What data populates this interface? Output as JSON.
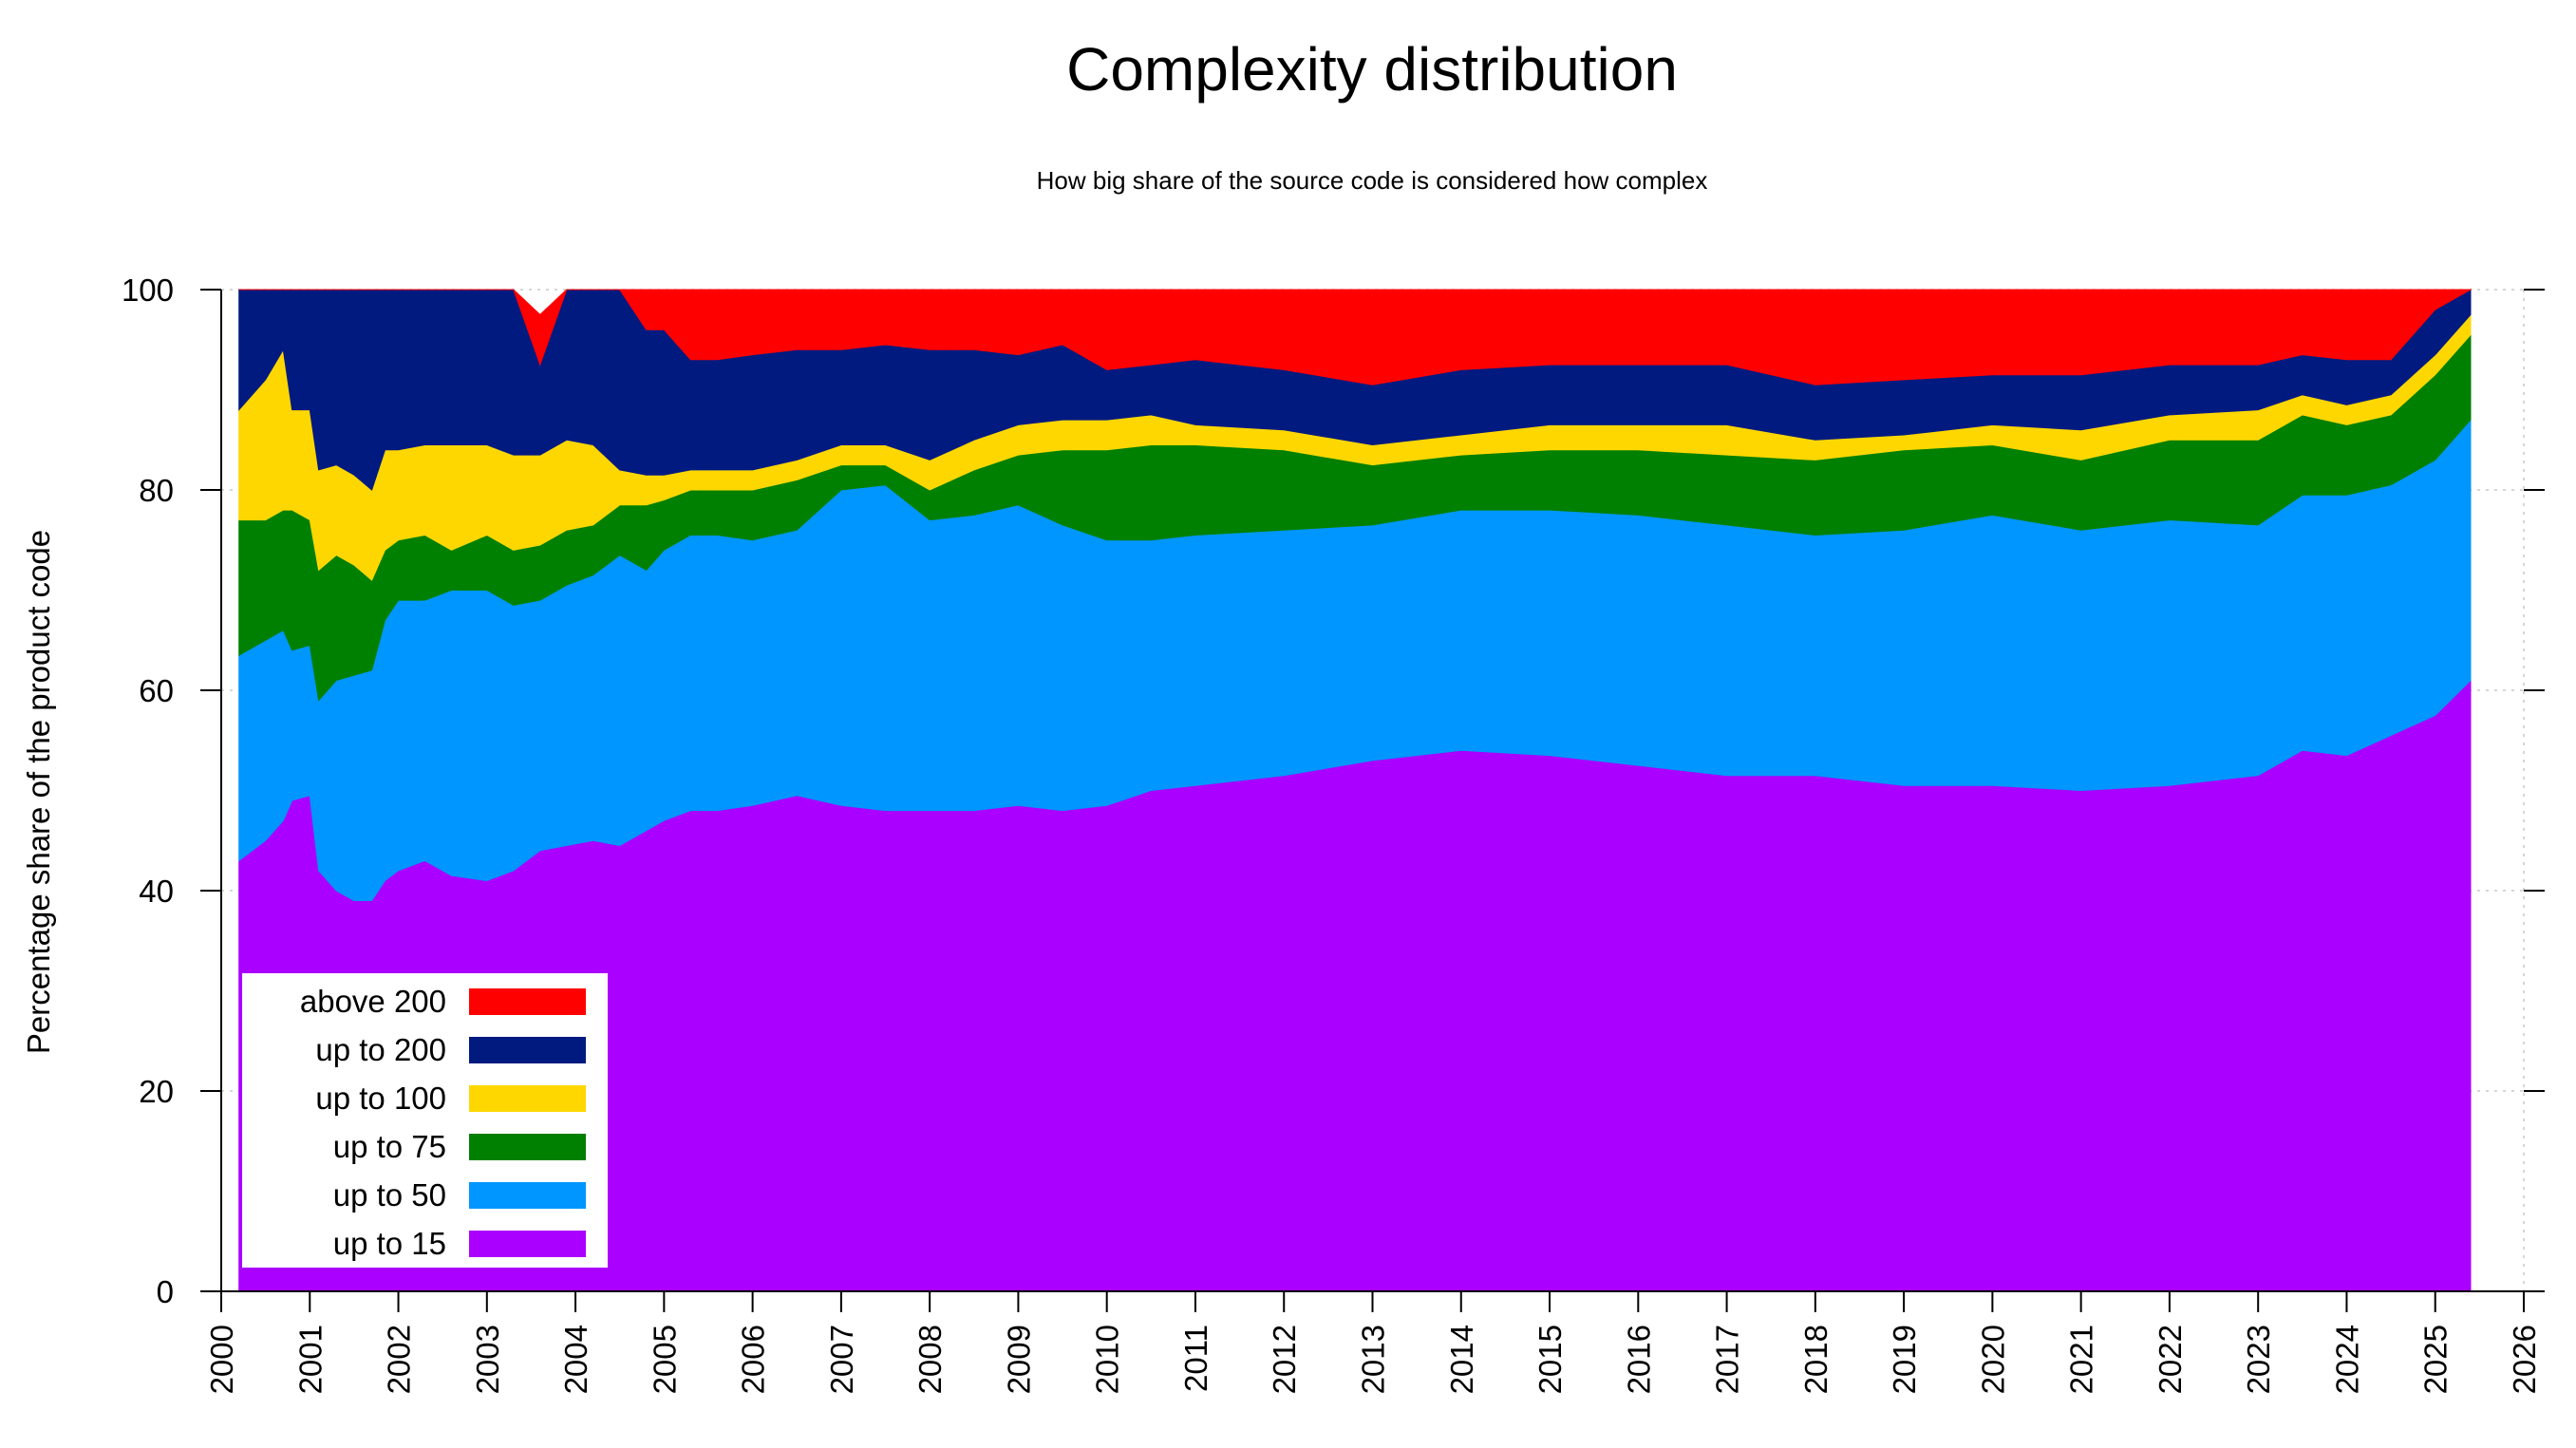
{
  "chart_data": {
    "type": "area",
    "stacked": true,
    "title": "Complexity distribution",
    "subtitle": "How big share of the source code is considered how complex",
    "xlabel": "",
    "ylabel": "Percentage share of the product code",
    "xlim": [
      2000,
      2026
    ],
    "ylim": [
      0,
      100
    ],
    "x_ticks": [
      "2000",
      "2001",
      "2002",
      "2003",
      "2004",
      "2005",
      "2006",
      "2007",
      "2008",
      "2009",
      "2010",
      "2011",
      "2012",
      "2013",
      "2014",
      "2015",
      "2016",
      "2017",
      "2018",
      "2019",
      "2020",
      "2021",
      "2022",
      "2023",
      "2024",
      "2025",
      "2026"
    ],
    "y_ticks": [
      "0",
      "20",
      "40",
      "60",
      "80",
      "100"
    ],
    "grid": true,
    "legend_position": "bottom-left",
    "x": [
      2000.2,
      2000.5,
      2000.7,
      2000.8,
      2001.0,
      2001.1,
      2001.3,
      2001.5,
      2001.7,
      2001.85,
      2002.0,
      2002.3,
      2002.6,
      2003.0,
      2003.3,
      2003.6,
      2003.9,
      2004.2,
      2004.5,
      2004.8,
      2005.0,
      2005.3,
      2005.6,
      2006.0,
      2006.5,
      2007.0,
      2007.5,
      2008.0,
      2008.5,
      2009.0,
      2009.5,
      2010.0,
      2010.5,
      2011.0,
      2012.0,
      2013.0,
      2014.0,
      2015.0,
      2016.0,
      2017.0,
      2018.0,
      2019.0,
      2020.0,
      2021.0,
      2022.0,
      2023.0,
      2023.5,
      2024.0,
      2024.5,
      2025.0,
      2025.4
    ],
    "series": [
      {
        "name": "up to 15",
        "color": "#aa00ff",
        "values": [
          43,
          45,
          47,
          49,
          49.5,
          42,
          40,
          39,
          39,
          41,
          42,
          43,
          41.5,
          41,
          42,
          44,
          44.5,
          45,
          44.5,
          46,
          47,
          48,
          48,
          48.5,
          49.5,
          48.5,
          48,
          48,
          48,
          48.5,
          48,
          48.5,
          50,
          50.5,
          51.5,
          53,
          54,
          53.5,
          52.5,
          51.5,
          51.5,
          50.5,
          50.5,
          50,
          50.5,
          51.5,
          54,
          53.5,
          55.5,
          57.5,
          61
        ]
      },
      {
        "name": "up to 50",
        "color": "#0096ff",
        "values": [
          20.5,
          20,
          19,
          15,
          15,
          17,
          21,
          22.5,
          23,
          26,
          27,
          26,
          28.5,
          29,
          26.5,
          25,
          26,
          26.5,
          29,
          26,
          27,
          27.5,
          27.5,
          26.5,
          26.5,
          31.5,
          32.5,
          29,
          29.5,
          30,
          28.5,
          26.5,
          25,
          25,
          24.5,
          23.5,
          24,
          24.5,
          25,
          25,
          24,
          25.5,
          27,
          26,
          26.5,
          25,
          25.5,
          26,
          25,
          25.5,
          26
        ]
      },
      {
        "name": "up to 75",
        "color": "#008000",
        "values": [
          13.5,
          12,
          12,
          14,
          12.5,
          13,
          12.5,
          11,
          9,
          7,
          6,
          6.5,
          4,
          5.5,
          5.5,
          5.5,
          5.5,
          5,
          5,
          6.5,
          5,
          4.5,
          4.5,
          5,
          5,
          2.5,
          2,
          3,
          4.5,
          5,
          7.5,
          9,
          9.5,
          9,
          8,
          6,
          5.5,
          6,
          6.5,
          7,
          7.5,
          8,
          7,
          7,
          8,
          8.5,
          8,
          7,
          7,
          8.5,
          8.5
        ]
      },
      {
        "name": "up to 100",
        "color": "#ffd700",
        "values": [
          11,
          14,
          16,
          10,
          11,
          10,
          9,
          9,
          9,
          10,
          9,
          9,
          10.5,
          9,
          9.5,
          9,
          9,
          8,
          3.5,
          3,
          2.5,
          2,
          2,
          2,
          2,
          2,
          2,
          3,
          3,
          3,
          3,
          3,
          3,
          2,
          2,
          2,
          2,
          2.5,
          2.5,
          3,
          2,
          1.5,
          2,
          3,
          2.5,
          3,
          2,
          2,
          2,
          2,
          2
        ]
      },
      {
        "name": "up to 200",
        "color": "#001a80",
        "values": [
          12,
          9,
          6,
          12,
          12,
          18,
          17.5,
          18.5,
          20,
          16,
          16,
          15.5,
          15.5,
          15.5,
          17,
          9,
          15,
          15.5,
          18,
          14.5,
          14.5,
          11,
          11,
          11.5,
          11,
          9.5,
          10,
          11,
          9,
          7,
          7.5,
          5,
          5,
          6.5,
          6,
          6,
          6.5,
          6,
          6,
          6,
          5.5,
          5.5,
          5,
          5.5,
          5,
          4.5,
          4,
          4.5,
          3.5,
          4.5,
          2.5
        ]
      },
      {
        "name": "above 200",
        "color": "#ff0000",
        "values": [
          0,
          0,
          0,
          0,
          0,
          0,
          0,
          0,
          0,
          0,
          0,
          0,
          0,
          0,
          0,
          5,
          0,
          0,
          0,
          4,
          4,
          7,
          7,
          6.5,
          6,
          6,
          5.5,
          6,
          6,
          6.5,
          5.5,
          8,
          7.5,
          7,
          8,
          9.5,
          8.5,
          7.5,
          7.5,
          7.5,
          9.5,
          9,
          8.5,
          8.5,
          7.5,
          7.5,
          6.5,
          7,
          7,
          2,
          0
        ]
      }
    ]
  }
}
